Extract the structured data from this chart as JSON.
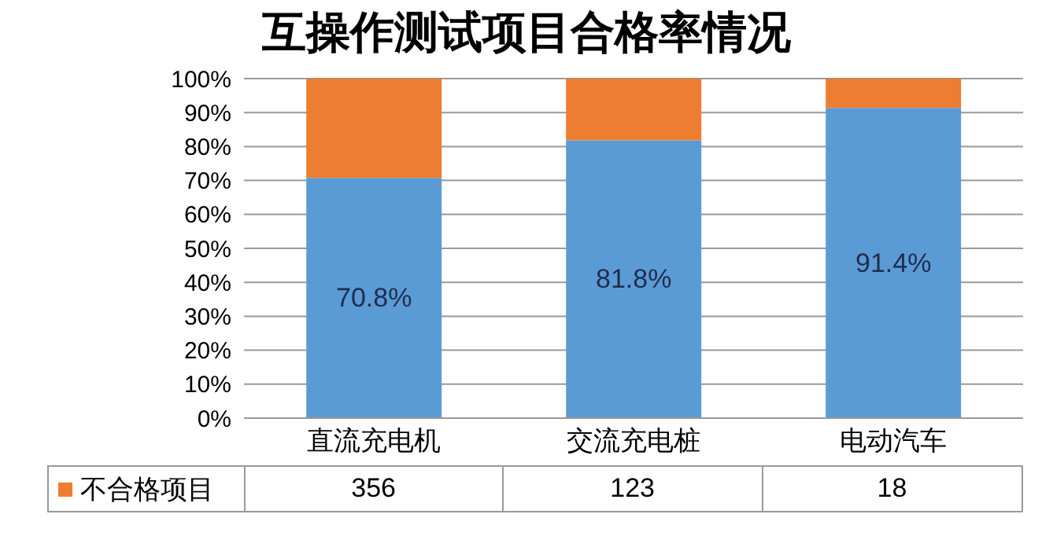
{
  "chart_data": {
    "type": "bar",
    "title": "互操作测试项目合格率情况",
    "categories": [
      "直流充电机",
      "交流充电桩",
      "电动汽车"
    ],
    "stacked": true,
    "series": [
      {
        "color": "#5b9bd5",
        "values": [
          70.8,
          81.8,
          91.4
        ],
        "value_labels": [
          "70.8%",
          "81.8%",
          "91.4%"
        ]
      },
      {
        "name": "不合格项目",
        "color": "#ed7d31",
        "values": [
          29.2,
          18.2,
          8.6
        ]
      }
    ],
    "annotations": [
      "356",
      "123",
      "18"
    ],
    "ylim": [
      0,
      100
    ],
    "yticks": [
      {
        "value": 0,
        "label": "0%"
      },
      {
        "value": 10,
        "label": "10%"
      },
      {
        "value": 20,
        "label": "20%"
      },
      {
        "value": 30,
        "label": "30%"
      },
      {
        "value": 40,
        "label": "40%"
      },
      {
        "value": 50,
        "label": "50%"
      },
      {
        "value": 60,
        "label": "60%"
      },
      {
        "value": 70,
        "label": "70%"
      },
      {
        "value": 80,
        "label": "80%"
      },
      {
        "value": 90,
        "label": "90%"
      },
      {
        "value": 100,
        "label": "100%"
      }
    ],
    "grid": "y",
    "legend": "bottom"
  }
}
